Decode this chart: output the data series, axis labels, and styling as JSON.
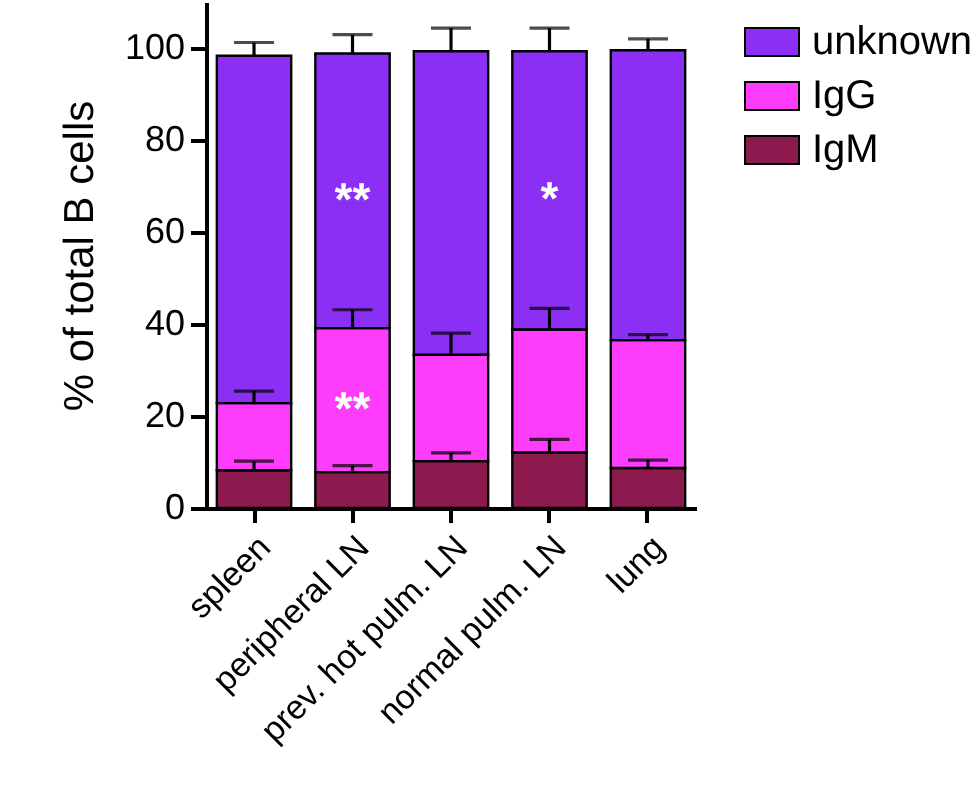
{
  "chart_data": {
    "type": "bar",
    "stacked": true,
    "ylabel": "% of total B cells",
    "categories": [
      "spleen",
      "peripheral LN",
      "prev. hot pulm. LN",
      "normal pulm. LN",
      "lung"
    ],
    "series": [
      {
        "name": "IgM",
        "color": "#8c1a4f",
        "values": [
          8.2,
          7.8,
          10.2,
          12.1,
          8.7
        ],
        "errors": [
          [
            8.2,
            10.2
          ],
          [
            7.8,
            9.2
          ],
          [
            10.2,
            12.0
          ],
          [
            12.1,
            14.9
          ],
          [
            8.7,
            10.4
          ]
        ]
      },
      {
        "name": "IgG",
        "color": "#fd3cfc",
        "values": [
          14.6,
          31.3,
          23.1,
          26.7,
          27.8
        ],
        "errors": [
          [
            22.8,
            25.4
          ],
          [
            39.1,
            43.1
          ],
          [
            33.3,
            38.0
          ],
          [
            38.8,
            43.4
          ],
          [
            36.5,
            37.7
          ]
        ]
      },
      {
        "name": "unknown",
        "color": "#8b2ff5",
        "values": [
          75.5,
          59.7,
          66.0,
          60.5,
          63.0
        ],
        "errors": [
          [
            98.3,
            101.2
          ],
          [
            98.8,
            102.9
          ],
          [
            99.3,
            104.3
          ],
          [
            99.3,
            104.3
          ],
          [
            99.5,
            102.0
          ]
        ]
      }
    ],
    "ylim": [
      0,
      110
    ],
    "yticks": [
      0,
      20,
      40,
      60,
      80,
      100
    ],
    "legend": "top right",
    "annotations": [
      "**",
      "**",
      "*"
    ]
  }
}
